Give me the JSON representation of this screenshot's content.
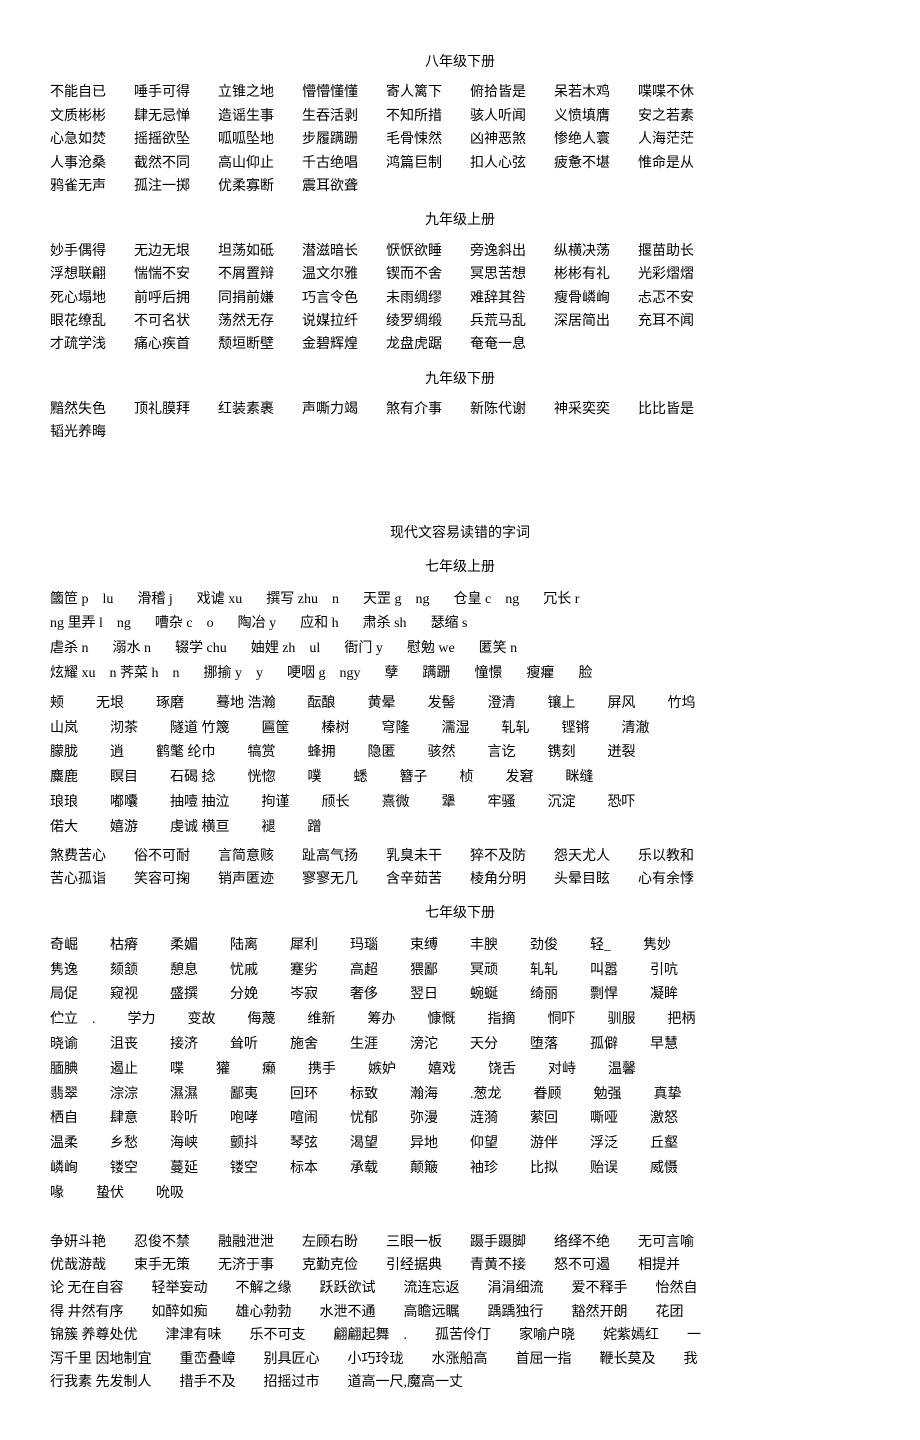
{
  "sections": {
    "g8_down": {
      "title": "八年级下册",
      "rows": [
        [
          "不能自已",
          "唾手可得",
          "立锥之地",
          "懵懵懂懂",
          "寄人篱下",
          "俯拾皆是",
          "呆若木鸡",
          "喋喋不休"
        ],
        [
          "文质彬彬",
          "肆无忌惮",
          "造谣生事",
          "生吞活剥",
          "不知所措",
          "骇人听闻",
          "义愤填膺",
          "安之若素"
        ],
        [
          "心急如焚",
          "摇摇欲坠",
          "呱呱坠地",
          "步履蹒跚",
          "毛骨悚然",
          "凶神恶煞",
          "惨绝人寰",
          "人海茫茫"
        ],
        [
          "人事沧桑",
          "截然不同",
          "高山仰止",
          "千古绝唱",
          "鸿篇巨制",
          "扣人心弦",
          "疲惫不堪",
          "惟命是从"
        ],
        [
          "鸦雀无声",
          "孤注一掷",
          "优柔寡断",
          "震耳欲聋"
        ]
      ]
    },
    "g9_up": {
      "title": "九年级上册",
      "rows": [
        [
          "妙手偶得",
          "无边无垠",
          "坦荡如砥",
          "潜滋暗长",
          "恹恹欲睡",
          "旁逸斜出",
          "纵横决荡",
          "揠苗助长"
        ],
        [
          "浮想联翩",
          "惴惴不安",
          "不屑置辩",
          "温文尔雅",
          "锲而不舍",
          "冥思苦想",
          "彬彬有礼",
          "光彩熠熠"
        ],
        [
          "死心塌地",
          "前呼后拥",
          "同捐前嫌",
          "巧言令色",
          "未雨绸缪",
          "难辞其咎",
          "瘦骨嶙峋",
          "忐忑不安"
        ],
        [
          "眼花缭乱",
          "不可名状",
          "荡然无存",
          "说媒拉纤",
          "绫罗绸缎",
          "兵荒马乱",
          "深居简出",
          "充耳不闻"
        ],
        [
          "才疏学浅",
          "痛心疾首",
          "颓垣断壁",
          "金碧辉煌",
          "龙盘虎踞",
          "奄奄一息"
        ]
      ]
    },
    "g9_down": {
      "title": "九年级下册",
      "rows": [
        [
          "黯然失色",
          "顶礼膜拜",
          "红装素裹",
          "声嘶力竭",
          "煞有介事",
          "新陈代谢",
          "神采奕奕",
          "比比皆是"
        ],
        [
          "韬光养晦"
        ]
      ]
    },
    "modern": {
      "title": "现代文容易读错的字词"
    },
    "g7_up": {
      "title": "七年级上册",
      "pinyin_rows": [
        [
          "簂笸 p　lu",
          "滑稽 j",
          "戏谑 xu",
          "撰写 zhu　n",
          "天罡 g　ng",
          "仓皇 c　ng",
          "冗长 r"
        ],
        [
          "ng 里弄 l　ng",
          "嘈杂 c　o",
          "陶冶 y",
          "应和 h",
          "肃杀 sh",
          "瑟缩 s"
        ],
        [
          "虐杀 n",
          "溺水 n",
          "辍学 chu",
          "妯娌 zh　ul",
          "衙门 y",
          "慰勉 we",
          "匿笑 n"
        ],
        [
          "炫耀 xu　n 荠菜 h　n",
          "挪揄 y　y",
          "哽咽 g　ngy",
          "孽",
          "蹒跚",
          "憧憬",
          "瘦癯",
          "脸"
        ]
      ],
      "word_rows": [
        [
          "颊",
          "无垠",
          "琢磨",
          "蓦地 浩瀚",
          "酝酿",
          "黄晕",
          "发髻",
          "澄清",
          "镶上",
          "屏风",
          "竹坞"
        ],
        [
          "山岚",
          "沏茶",
          "隧道 竹篾",
          "匾筐",
          "榛树",
          "穹隆",
          "濡湿",
          "轧轧",
          "铿锵",
          "清澈"
        ],
        [
          "朦胧",
          "逍",
          "鹤氅 纶巾",
          "犒赏",
          "蜂拥",
          "隐匿",
          "骇然",
          "言讫",
          "镌刻",
          "迸裂"
        ],
        [
          "麋鹿",
          "瞑目",
          "石碣 捻",
          "恍惚",
          "噗",
          "蟋",
          "簪子",
          "桢",
          "发窘",
          "眯缝"
        ],
        [
          "琅琅",
          "嘟囔",
          "抽噎 抽泣",
          "拘谨",
          "颀长",
          "熹微",
          "犟",
          "牢骚",
          "沉淀",
          "恐吓"
        ],
        [
          "偌大",
          "嬉游",
          "虔诚 横亘",
          "褪",
          "蹭"
        ]
      ],
      "idiom_rows": [
        [
          "煞费苦心",
          "俗不可耐",
          "言简意赅",
          "趾高气扬",
          "乳臭未干",
          "猝不及防",
          "怨天尤人",
          "乐以教和"
        ],
        [
          "苦心孤诣",
          "笑容可掬",
          "销声匿迹",
          "寥寥无几",
          "含辛茹苦",
          "棱角分明",
          "头晕目眩",
          "心有余悸"
        ]
      ]
    },
    "g7_down": {
      "title": "七年级下册",
      "word_rows": [
        [
          "奇崛",
          "枯瘠",
          "柔媚",
          "陆离",
          "犀利",
          "玛瑙",
          "束缚",
          "丰腴",
          "劲俊",
          "轻_",
          "隽妙"
        ],
        [
          "隽逸",
          "颏颔",
          "憩息",
          "忧戚",
          "蹇劣",
          "高超",
          "猥鄙",
          "冥顽",
          "轧轧",
          "叫嚣",
          "引吭"
        ],
        [
          "局促",
          "窥视",
          "盛撰",
          "分娩",
          "岑寂",
          "奢侈",
          "翌日",
          "蜿蜒",
          "绮丽",
          "剽悍",
          "凝眸"
        ],
        [
          "伫立　.",
          "学力",
          "变故",
          "侮蔑",
          "维新",
          "筹办",
          "慷慨",
          "指摘",
          "恫吓",
          "驯服",
          "把柄"
        ],
        [
          "晓谕",
          "沮丧",
          "接济",
          "耸听",
          "施舍",
          "生涯",
          "滂沱",
          "天分",
          "堕落",
          "孤僻",
          "早慧"
        ],
        [
          "腼腆",
          "遏止",
          "喋",
          "獾",
          "癞",
          "携手",
          "嫉妒",
          "嬉戏",
          "饶舌",
          "对峙",
          "温馨"
        ],
        [
          "翡翠",
          "淙淙",
          "濕濕",
          "鄙夷",
          "回环",
          "标致",
          "瀚海",
          ".葱龙",
          "眷顾",
          "勉强",
          "真挚"
        ],
        [
          "栖自",
          "肆意",
          "聆听",
          "咆哮",
          "喧闹",
          "忧郁",
          "弥漫",
          "涟漪",
          "萦回",
          "嘶哑",
          "激怒"
        ],
        [
          "温柔",
          "乡愁",
          "海峡",
          "颤抖",
          "琴弦",
          "渴望",
          "异地",
          "仰望",
          "游伴",
          "浮泛",
          "丘壑"
        ],
        [
          "嶙峋",
          "镂空",
          "蔓延",
          "镂空",
          "标本",
          "承载",
          "颠簸",
          "袖珍",
          "比拟",
          "贻误",
          "威慑"
        ],
        [
          "喙",
          "蛰伏",
          "吮吸"
        ]
      ],
      "idiom_rows": [
        [
          "争妍斗艳",
          "忍俊不禁",
          "融融泄泄",
          "左顾右盼",
          "三眼一板",
          "蹑手蹑脚",
          "络绎不绝",
          "无可言喻"
        ],
        [
          "优哉游哉",
          "束手无策",
          "无济于事",
          "克勤克俭",
          "引经据典",
          "青黄不接",
          "怒不可遏",
          "相提并"
        ],
        [
          "论  无在自容",
          "轻举妄动",
          "不解之缘",
          "跃跃欲试",
          "流连忘返",
          "涓涓细流",
          "爱不释手",
          "怡然自"
        ],
        [
          "得  井然有序",
          "如醉如痴",
          "雄心勃勃",
          "水泄不通",
          "高瞻远瞩",
          "踽踽独行",
          "豁然开朗",
          "花团"
        ],
        [
          "锦簇  养尊处优",
          "津津有味",
          "乐不可支",
          "翩翩起舞　.",
          "孤苦伶仃",
          "家喻户晓",
          "姹紫嫣红",
          "一"
        ],
        [
          "泻千里 因地制宜",
          "重峦叠嶂",
          "别具匠心",
          "小巧玲珑",
          "水涨船高",
          "首屈一指",
          "鞭长莫及",
          "我"
        ],
        [
          "行我素  先发制人",
          "措手不及",
          "招摇过市",
          "道高一尺,魔高一丈"
        ]
      ]
    }
  }
}
